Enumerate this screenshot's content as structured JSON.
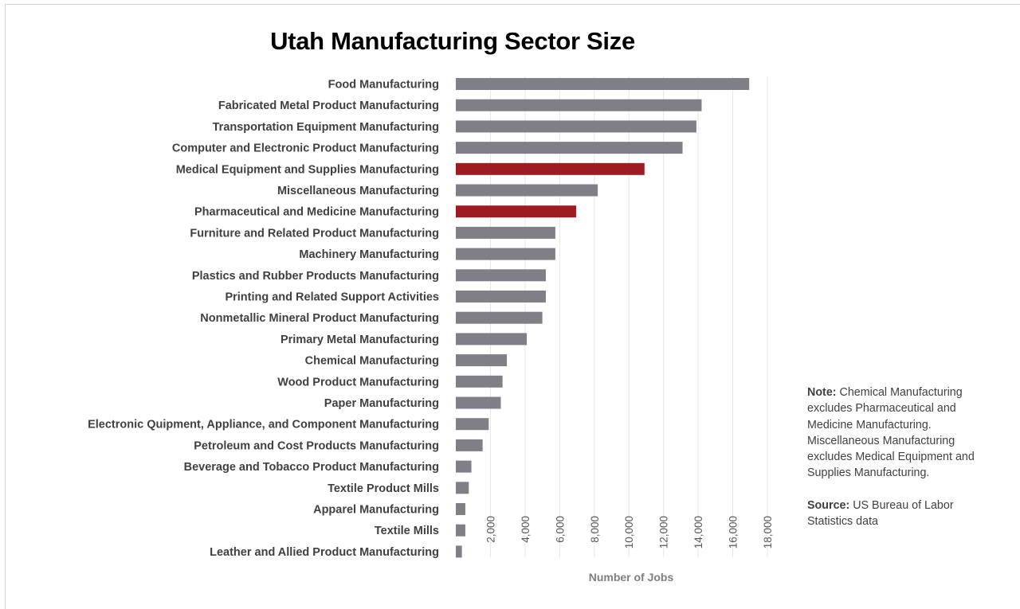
{
  "chart_data": {
    "type": "bar",
    "orientation": "horizontal",
    "title": "Utah Manufacturing Sector Size",
    "xlabel": "Number of Jobs",
    "ylabel": "",
    "xlim": [
      0,
      18000
    ],
    "x_ticks": [
      "2,000",
      "4,000",
      "6,000",
      "8,000",
      "10,000",
      "12,000",
      "14,000",
      "16,000",
      "18,000"
    ],
    "grid": true,
    "categories": [
      "Food Manufacturing",
      "Fabricated Metal Product Manufacturing",
      "Transportation Equipment Manufacturing",
      "Computer and Electronic Product Manufacturing",
      "Medical Equipment and Supplies Manufacturing",
      "Miscellaneous Manufacturing",
      "Pharmaceutical and Medicine Manufacturing",
      "Furniture and Related Product Manufacturing",
      "Machinery Manufacturing",
      "Plastics and Rubber Products Manufacturing",
      "Printing and Related Support Activities",
      "Nonmetallic Mineral Product Manufacturing",
      "Primary Metal Manufacturing",
      "Chemical Manufacturing",
      "Wood Product Manufacturing",
      "Paper Manufacturing",
      "Electronic Quipment, Appliance, and Component Manufacturing",
      "Petroleum and Cost Products Manufacturing",
      "Beverage and Tobacco Product Manufacturing",
      "Textile Product Mills",
      "Apparel Manufacturing",
      "Textile Mills",
      "Leather and Allied Product Manufacturing"
    ],
    "values": [
      16950,
      14200,
      13900,
      13100,
      10900,
      8200,
      6950,
      5750,
      5750,
      5200,
      5200,
      5000,
      4100,
      2950,
      2700,
      2600,
      1900,
      1550,
      900,
      750,
      550,
      550,
      350
    ],
    "highlighted": [
      "Medical Equipment and Supplies Manufacturing",
      "Pharmaceutical and Medicine Manufacturing"
    ],
    "colors": {
      "bar": "#7f7f87",
      "highlight": "#9e1b22",
      "grid": "#e7e7e7"
    }
  },
  "note": {
    "note_label": "Note:",
    "note_text": "Chemical Manufacturing excludes Pharmaceutical and Medicine Manufacturing. Miscellaneous Manufacturing excludes Medical Equipment and Supplies Manufacturing.",
    "source_label": "Source:",
    "source_text": "US Bureau of Labor Statistics data"
  }
}
